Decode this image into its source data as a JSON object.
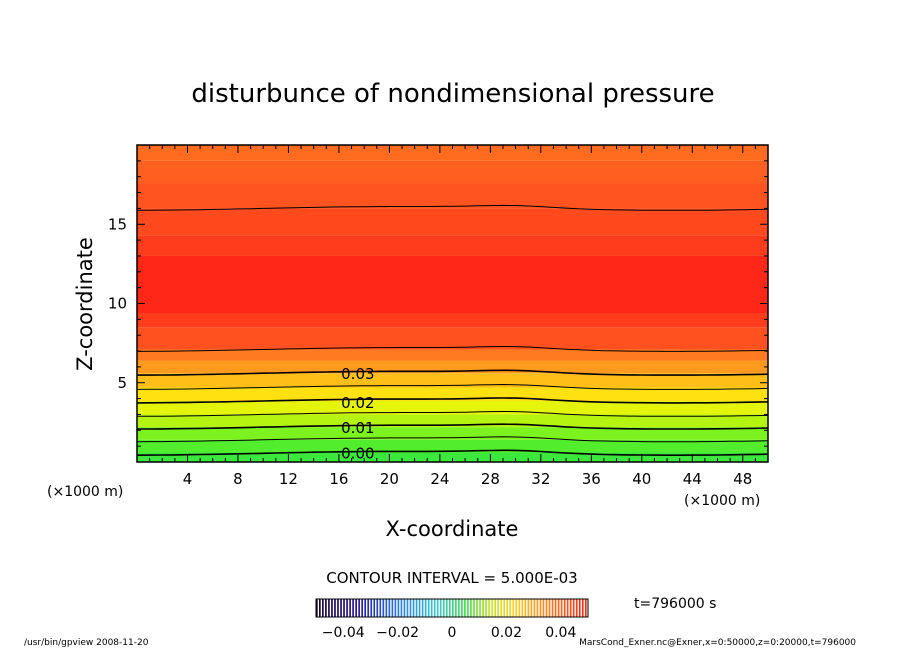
{
  "chart_data": {
    "type": "heatmap",
    "title": "disturbunce of nondimensional pressure",
    "xlabel": "X-coordinate",
    "ylabel": "Z-coordinate",
    "x_unit": "(×1000 m)",
    "y_unit": "(×1000 m)",
    "xlim": [
      0,
      50
    ],
    "ylim": [
      0,
      20
    ],
    "xticks": [
      4,
      8,
      12,
      16,
      20,
      24,
      28,
      32,
      36,
      40,
      44,
      48
    ],
    "yticks": [
      5,
      10,
      15
    ],
    "contour_interval_text": "CONTOUR INTERVAL = 5.000E-03",
    "contour_labels": [
      {
        "text": "0.00",
        "value": 0.0,
        "x": 17.5,
        "z": 0.6
      },
      {
        "text": "0.01",
        "value": 0.01,
        "x": 17.5,
        "z": 2.2
      },
      {
        "text": "0.02",
        "value": 0.02,
        "x": 17.5,
        "z": 3.8
      },
      {
        "text": "0.03",
        "value": 0.03,
        "x": 17.5,
        "z": 5.6
      }
    ],
    "contour_levels": [
      {
        "value": 0.0,
        "z": 0.55
      },
      {
        "value": 0.005,
        "z": 1.4
      },
      {
        "value": 0.01,
        "z": 2.2
      },
      {
        "value": 0.015,
        "z": 3.0
      },
      {
        "value": 0.02,
        "z": 3.85
      },
      {
        "value": 0.025,
        "z": 4.7
      },
      {
        "value": 0.03,
        "z": 5.6
      },
      {
        "value": 0.035,
        "z": 7.1
      },
      {
        "value": 0.035,
        "z": 16.0
      }
    ],
    "colorbar_ticks": [
      "−0.04",
      "−0.02",
      "0",
      "0.02",
      "0.04"
    ],
    "colorbar_range": [
      -0.05,
      0.05
    ],
    "time_label": "t=796000 s"
  },
  "footer": {
    "left": "/usr/bin/gpview   2008-11-20",
    "right": "MarsCond_Exner.nc@Exner,x=0:50000,z=0:20000,t=796000"
  }
}
